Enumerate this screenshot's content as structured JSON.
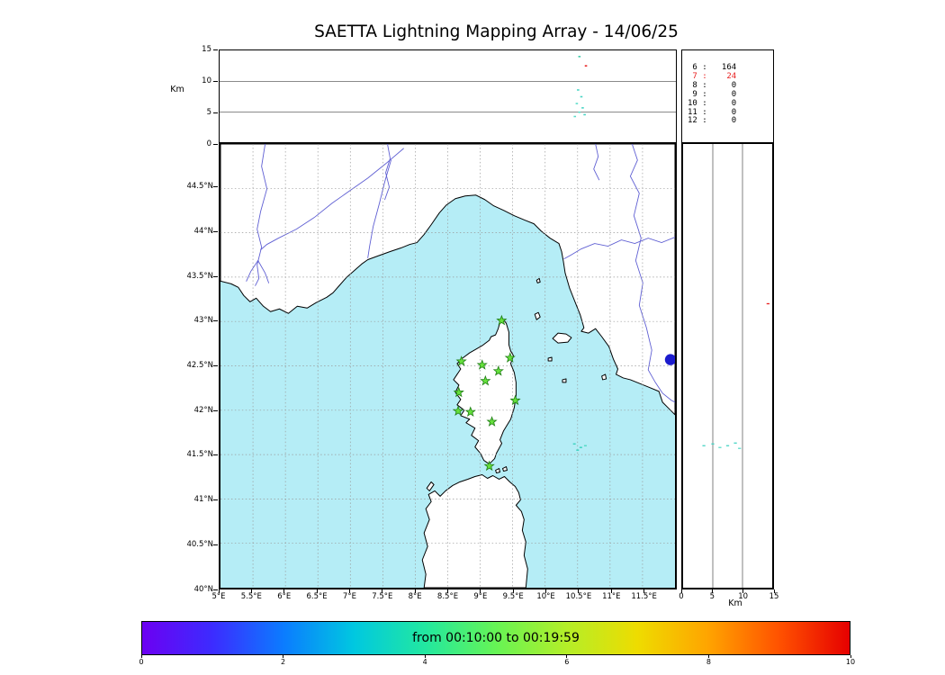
{
  "title": "SAETTA Lightning Mapping Array - 14/06/25",
  "chart_data": [
    {
      "name": "altitude_vs_longitude_panel",
      "type": "scatter",
      "ylabel": "Km",
      "xlim": [
        5,
        12
      ],
      "ylim": [
        0,
        15
      ],
      "ytick_values": [
        0,
        5,
        10,
        15
      ],
      "ytick_labels": [
        "0",
        "5",
        "10",
        "15"
      ],
      "hgrid_km": [
        5,
        10
      ],
      "points": [
        {
          "lon": 10.52,
          "km": 14.0,
          "color": "#3cc9a8"
        },
        {
          "lon": 10.62,
          "km": 12.5,
          "color": "#e82222"
        },
        {
          "lon": 10.5,
          "km": 8.6,
          "color": "#45d4c4"
        },
        {
          "lon": 10.55,
          "km": 7.5,
          "color": "#45d4c4"
        },
        {
          "lon": 10.48,
          "km": 6.4,
          "color": "#5adcc9"
        },
        {
          "lon": 10.57,
          "km": 5.7,
          "color": "#45d4c4"
        },
        {
          "lon": 10.52,
          "km": 5.0,
          "color": "#5adcc9"
        },
        {
          "lon": 10.6,
          "km": 4.6,
          "color": "#45d4c4"
        },
        {
          "lon": 10.45,
          "km": 4.3,
          "color": "#5adcc9"
        }
      ]
    },
    {
      "name": "source_count_table",
      "type": "table",
      "rows": [
        {
          "level": "6",
          "count": "164",
          "color": "#000000"
        },
        {
          "level": "7",
          "count": "24",
          "color": "#e82222"
        },
        {
          "level": "8",
          "count": "0",
          "color": "#000000"
        },
        {
          "level": "9",
          "count": "0",
          "color": "#000000"
        },
        {
          "level": "10",
          "count": "0",
          "color": "#000000"
        },
        {
          "level": "11",
          "count": "0",
          "color": "#000000"
        },
        {
          "level": "12",
          "count": "0",
          "color": "#000000"
        }
      ]
    },
    {
      "name": "station_map_panel",
      "type": "scatter",
      "xlim": [
        5,
        12
      ],
      "ylim": [
        40,
        45
      ],
      "grid_step_deg": 0.5,
      "lat_ticks": [
        {
          "lat": 44.5,
          "label": "44.5°N"
        },
        {
          "lat": 44,
          "label": "44°N"
        },
        {
          "lat": 43.5,
          "label": "43.5°N"
        },
        {
          "lat": 43,
          "label": "43°N"
        },
        {
          "lat": 42.5,
          "label": "42.5°N"
        },
        {
          "lat": 42,
          "label": "42°N"
        },
        {
          "lat": 41.5,
          "label": "41.5°N"
        },
        {
          "lat": 41,
          "label": "41°N"
        },
        {
          "lat": 40.5,
          "label": "40.5°N"
        },
        {
          "lat": 40,
          "label": "40°N"
        }
      ],
      "lon_ticks": [
        {
          "lon": 5,
          "label": "5°E"
        },
        {
          "lon": 5.5,
          "label": "5.5°E"
        },
        {
          "lon": 6,
          "label": "6°E"
        },
        {
          "lon": 6.5,
          "label": "6.5°E"
        },
        {
          "lon": 7,
          "label": "7°E"
        },
        {
          "lon": 7.5,
          "label": "7.5°E"
        },
        {
          "lon": 8,
          "label": "8°E"
        },
        {
          "lon": 8.5,
          "label": "8.5°E"
        },
        {
          "lon": 9,
          "label": "9°E"
        },
        {
          "lon": 9.5,
          "label": "9.5°E"
        },
        {
          "lon": 10,
          "label": "10°E"
        },
        {
          "lon": 10.5,
          "label": "10.5°E"
        },
        {
          "lon": 11,
          "label": "11°E"
        },
        {
          "lon": 11.5,
          "label": "11.5°E"
        }
      ],
      "stations": [
        {
          "lon": 9.33,
          "lat": 43.01
        },
        {
          "lon": 8.71,
          "lat": 42.55
        },
        {
          "lon": 9.03,
          "lat": 42.51
        },
        {
          "lon": 9.46,
          "lat": 42.59
        },
        {
          "lon": 9.28,
          "lat": 42.44
        },
        {
          "lon": 9.08,
          "lat": 42.33
        },
        {
          "lon": 8.67,
          "lat": 42.2
        },
        {
          "lon": 9.54,
          "lat": 42.11
        },
        {
          "lon": 8.66,
          "lat": 41.99
        },
        {
          "lon": 8.85,
          "lat": 41.98
        },
        {
          "lon": 9.18,
          "lat": 41.87
        },
        {
          "lon": 9.14,
          "lat": 41.37
        }
      ],
      "flash_points": [
        {
          "lon": 10.45,
          "lat": 41.62,
          "color": "#45d4c4"
        },
        {
          "lon": 10.55,
          "lat": 41.58,
          "color": "#45d4c4"
        },
        {
          "lon": 10.62,
          "lat": 41.6,
          "color": "#5adcc9"
        },
        {
          "lon": 10.5,
          "lat": 41.55,
          "color": "#45d4c4"
        }
      ],
      "lake_marker": {
        "lon": 11.93,
        "lat": 42.57,
        "color": "#1c1ccd"
      },
      "sea_color": "#b5edf6",
      "land_color": "#ffffff",
      "coast_color": "#000000",
      "river_color": "#5f5fd3",
      "grid_color": "#999999",
      "station_color": "#66e03c",
      "station_edge_color": "#1e7d14"
    },
    {
      "name": "altitude_vs_latitude_panel",
      "type": "scatter",
      "xlabel": "Km",
      "xlim": [
        0,
        15
      ],
      "ylim": [
        40,
        45
      ],
      "xtick_values": [
        0,
        5,
        10,
        15
      ],
      "xtick_labels": [
        "0",
        "5",
        "10",
        "15"
      ],
      "vgrid_km": [
        5,
        10
      ],
      "points": [
        {
          "km": 3.5,
          "lat": 41.6,
          "color": "#45d4c4"
        },
        {
          "km": 5.0,
          "lat": 41.62,
          "color": "#45d4c4"
        },
        {
          "km": 6.2,
          "lat": 41.58,
          "color": "#5adcc9"
        },
        {
          "km": 7.5,
          "lat": 41.6,
          "color": "#45d4c4"
        },
        {
          "km": 8.8,
          "lat": 41.63,
          "color": "#45d4c4"
        },
        {
          "km": 9.5,
          "lat": 41.57,
          "color": "#5adcc9"
        },
        {
          "km": 14.3,
          "lat": 43.2,
          "color": "#e82222"
        }
      ]
    },
    {
      "name": "time_colorbar",
      "type": "heatmap",
      "title": "from 00:10:00 to 00:19:59",
      "range": [
        0,
        10
      ],
      "tick_values": [
        0,
        2,
        4,
        6,
        8,
        10
      ],
      "tick_labels": [
        "0",
        "2",
        "4",
        "6",
        "8",
        "10"
      ],
      "gradient": [
        "#6c00f2",
        "#3c2cff",
        "#0b7cff",
        "#00c8e0",
        "#22e8a0",
        "#66f455",
        "#b4ee28",
        "#eedc00",
        "#ffa400",
        "#ff5200",
        "#e60000"
      ]
    }
  ]
}
